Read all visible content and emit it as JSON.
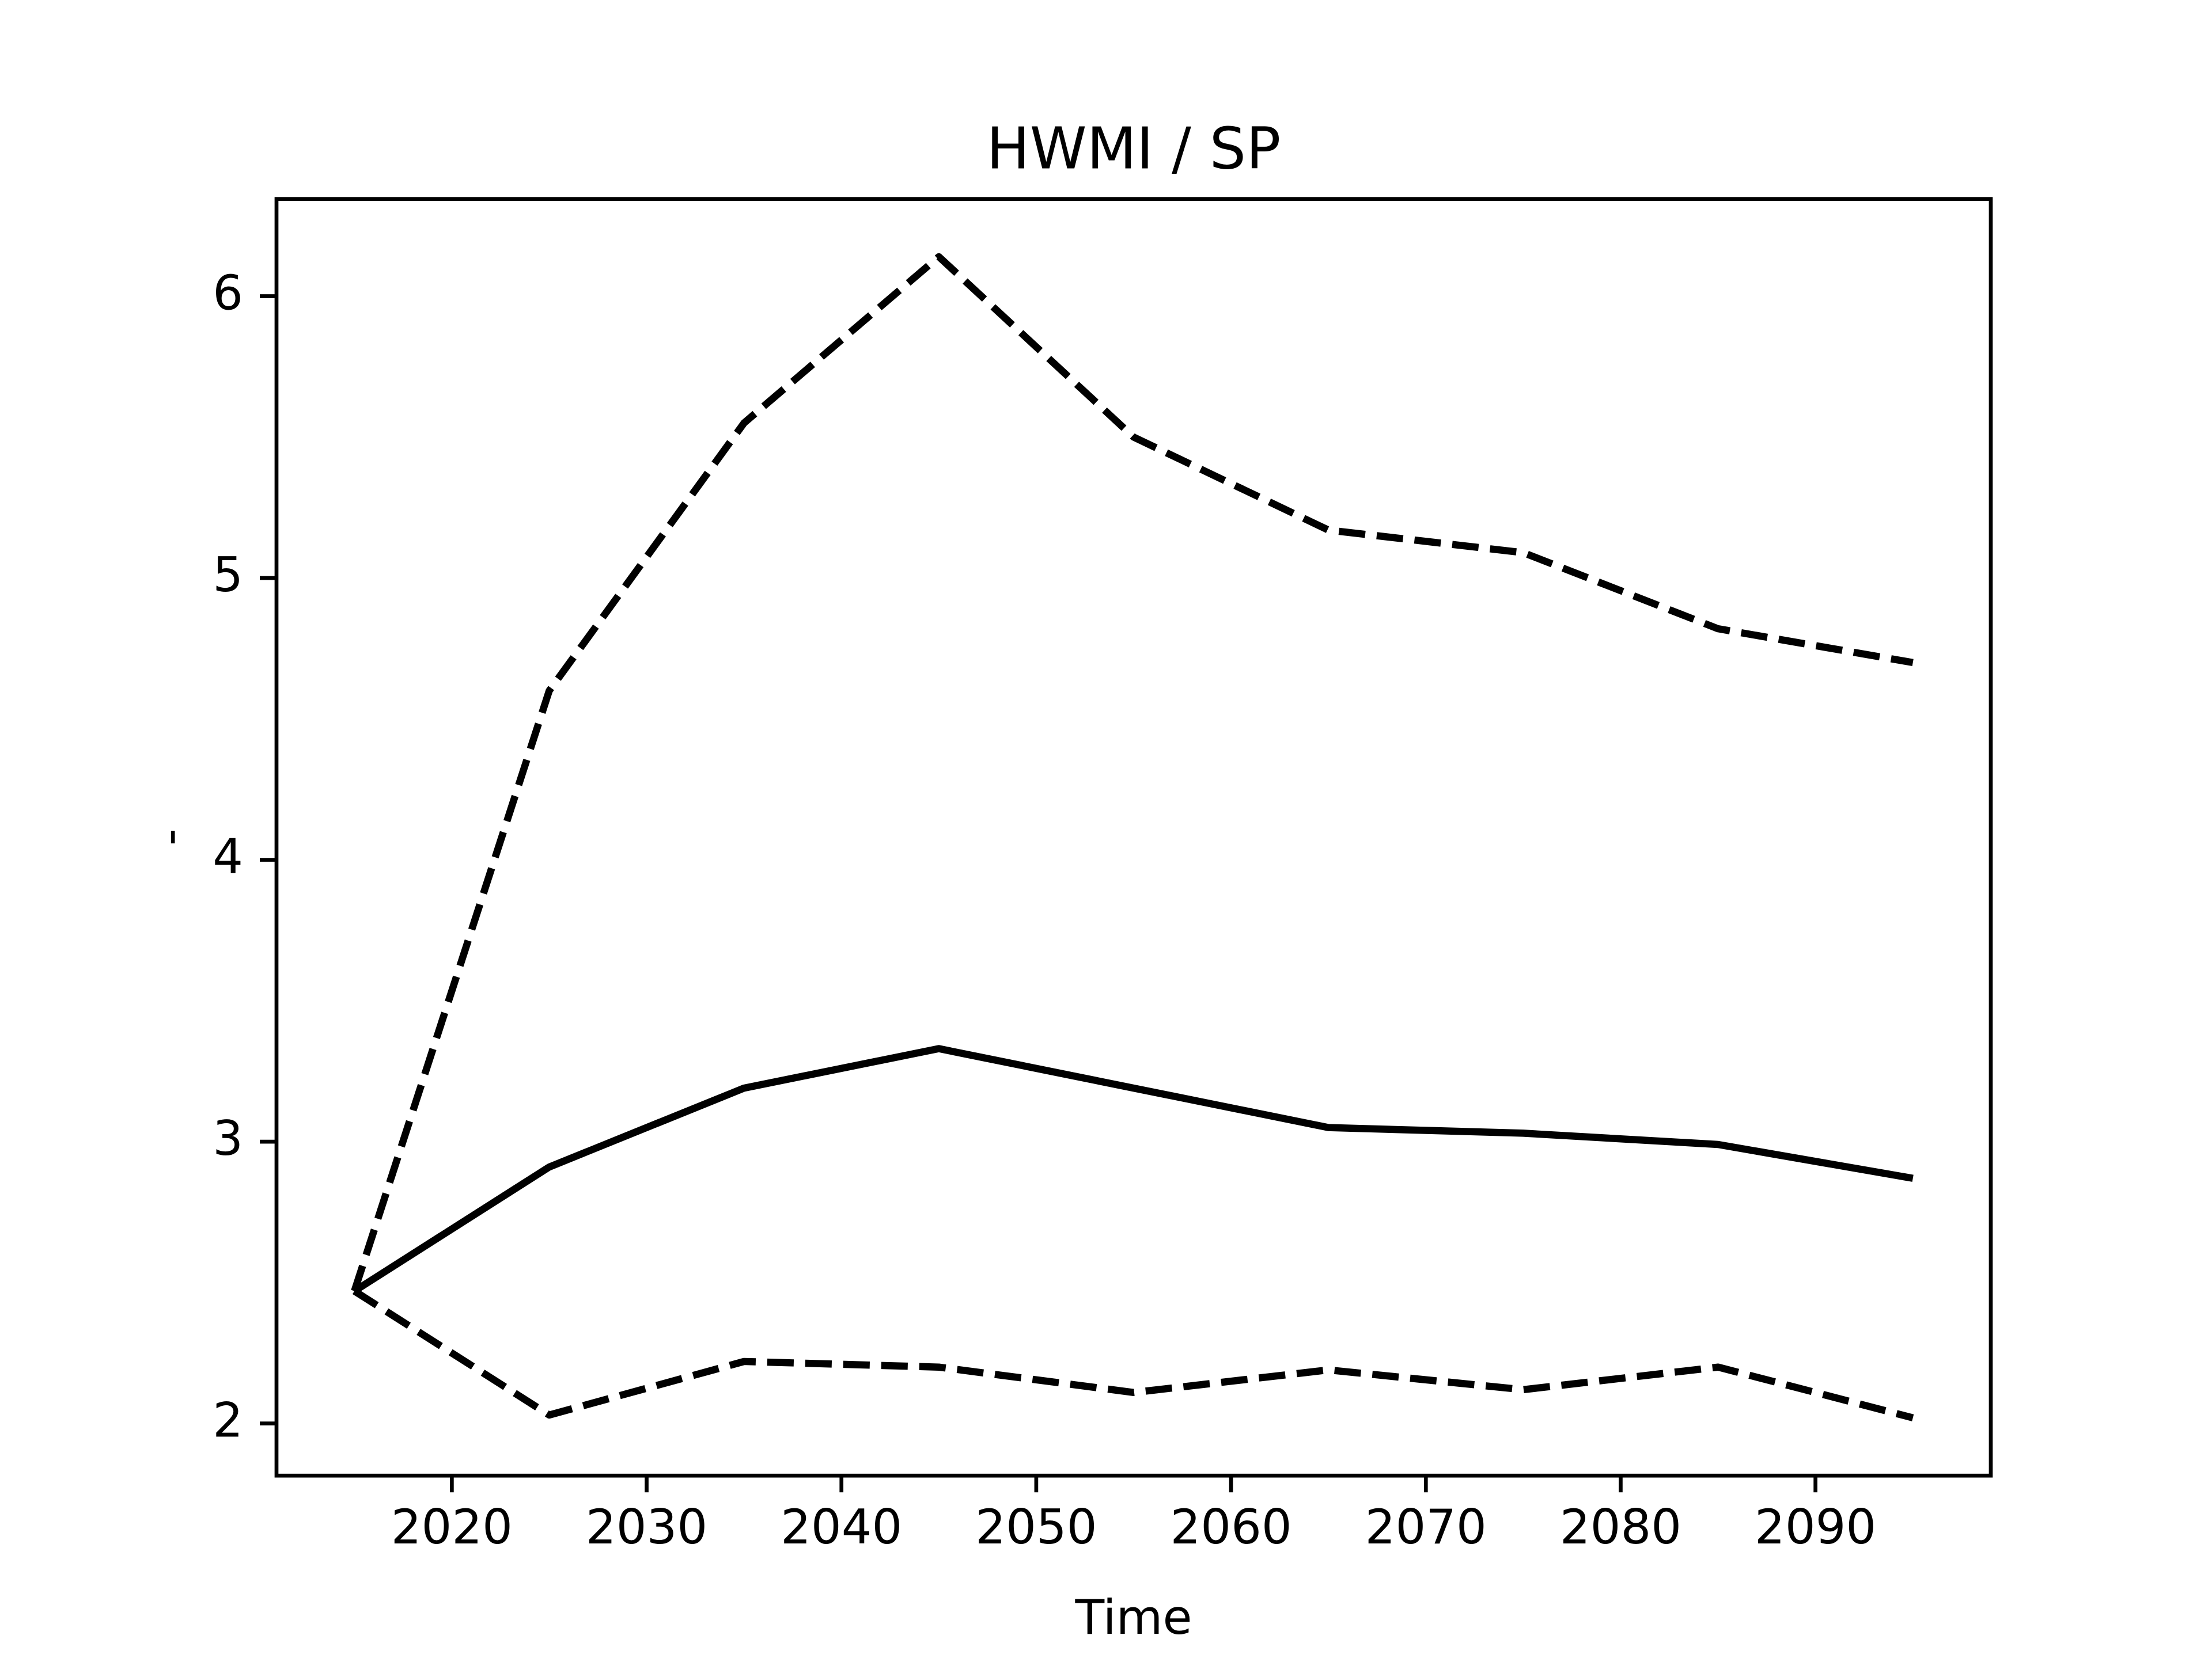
{
  "chart_data": {
    "type": "line",
    "title": "HWMI / SP",
    "xlabel": "Time",
    "ylabel": "-",
    "x": [
      2015,
      2025,
      2035,
      2045,
      2055,
      2065,
      2075,
      2085,
      2095
    ],
    "series": [
      {
        "color": "#000000",
        "linestyle": "solid",
        "values": [
          2.47,
          2.91,
          3.19,
          3.33,
          3.19,
          3.05,
          3.03,
          2.99,
          2.87
        ]
      },
      {
        "color": "#000000",
        "linestyle": "dashed",
        "values": [
          2.47,
          4.6,
          5.55,
          6.14,
          5.5,
          5.17,
          5.09,
          4.82,
          4.7
        ]
      },
      {
        "color": "#000000",
        "linestyle": "dashed",
        "values": [
          2.47,
          2.03,
          2.22,
          2.2,
          2.11,
          2.19,
          2.12,
          2.2,
          2.02
        ]
      }
    ],
    "xlim": [
      2011,
      2099
    ],
    "xticks": [
      2020,
      2030,
      2040,
      2050,
      2060,
      2070,
      2080,
      2090
    ],
    "ylim": [
      1.815,
      6.345
    ],
    "yticks": [
      2,
      3,
      4,
      5,
      6
    ],
    "grid": false
  }
}
